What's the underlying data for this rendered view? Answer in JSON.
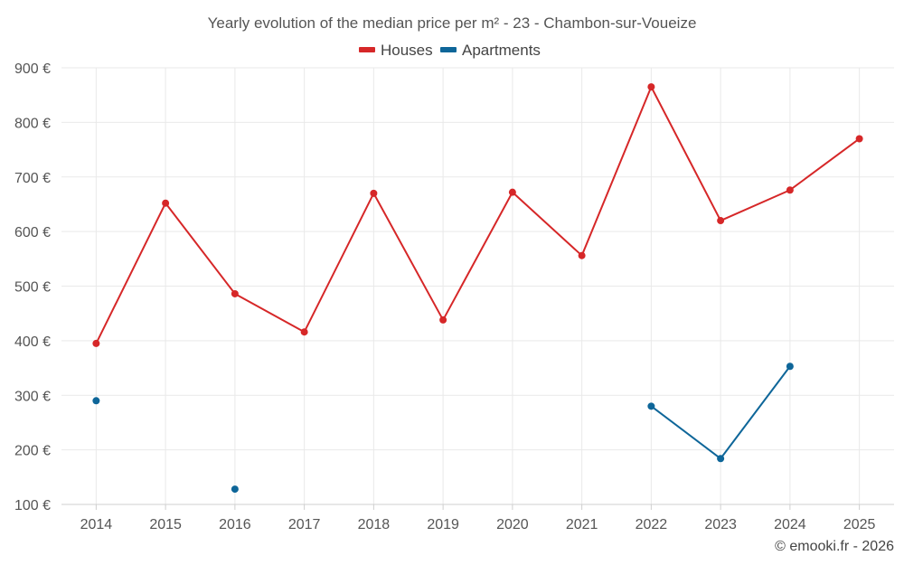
{
  "chart_data": {
    "type": "line",
    "title": "Yearly evolution of the median price per m² - 23 - Chambon-sur-Voueize",
    "categories": [
      "2014",
      "2015",
      "2016",
      "2017",
      "2018",
      "2019",
      "2020",
      "2021",
      "2022",
      "2023",
      "2024",
      "2025"
    ],
    "series": [
      {
        "name": "Houses",
        "color": "#d62728",
        "values": [
          395,
          652,
          486,
          416,
          670,
          438,
          672,
          556,
          865,
          620,
          676,
          770
        ]
      },
      {
        "name": "Apartments",
        "color": "#0e6699",
        "values": [
          290,
          null,
          128,
          null,
          null,
          null,
          null,
          null,
          280,
          184,
          353,
          null
        ]
      }
    ],
    "yticks": [
      "100 €",
      "200 €",
      "300 €",
      "400 €",
      "500 €",
      "600 €",
      "700 €",
      "800 €",
      "900 €"
    ],
    "ytick_values": [
      100,
      200,
      300,
      400,
      500,
      600,
      700,
      800,
      900
    ],
    "ylim": [
      100,
      900
    ],
    "xlabel": "",
    "ylabel": "",
    "legend_position": "top-center",
    "grid": true
  },
  "credit": "© emooki.fr - 2026"
}
